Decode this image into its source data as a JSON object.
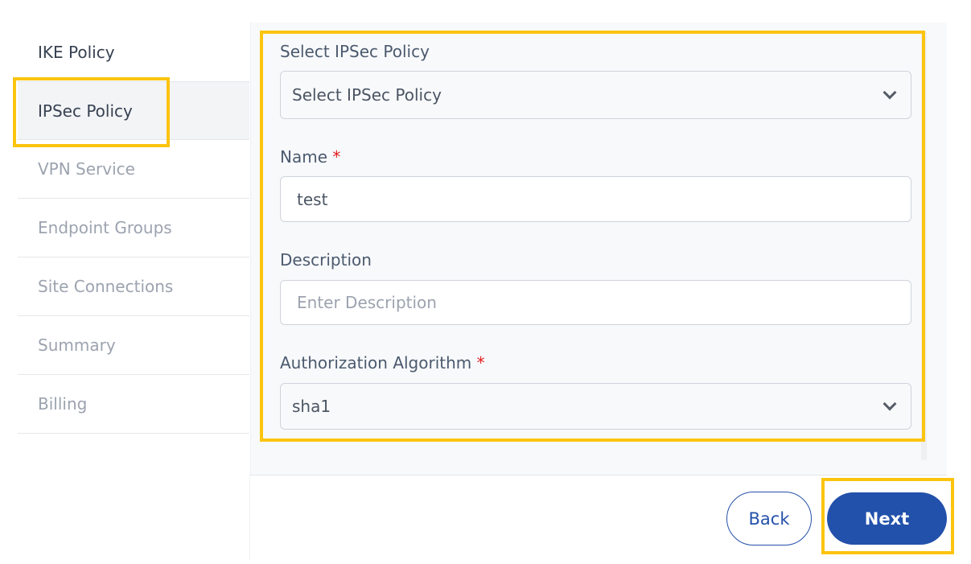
{
  "sidebar": {
    "items": [
      {
        "label": "IKE Policy"
      },
      {
        "label": "IPSec Policy"
      },
      {
        "label": "VPN Service"
      },
      {
        "label": "Endpoint Groups"
      },
      {
        "label": "Site Connections"
      },
      {
        "label": "Summary"
      },
      {
        "label": "Billing"
      }
    ],
    "active": "IPSec Policy"
  },
  "form": {
    "ipsec_policy": {
      "label": "Select IPSec Policy",
      "value": "Select IPSec Policy"
    },
    "name": {
      "label": "Name",
      "required": "*",
      "value": "test"
    },
    "description": {
      "label": "Description",
      "placeholder": "Enter Description",
      "value": ""
    },
    "auth_algorithm": {
      "label": "Authorization Algorithm",
      "required": "*",
      "value": "sha1"
    }
  },
  "footer": {
    "back_label": "Back",
    "next_label": "Next"
  },
  "colors": {
    "primary": "#2251ab",
    "highlight": "#fbc40f",
    "required": "#e11d1d"
  }
}
